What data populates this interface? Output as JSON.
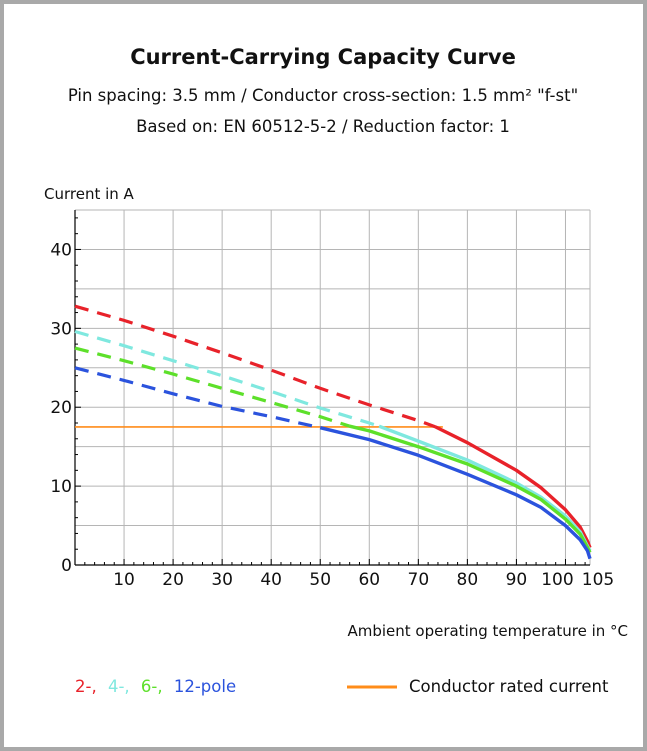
{
  "header": {
    "title": "Current-Carrying Capacity Curve",
    "subtitle1": "Pin spacing: 3.5 mm / Conductor cross-section: 1.5 mm² \"f-st\"",
    "subtitle2": "Based on: EN 60512-5-2 / Reduction factor: 1"
  },
  "legend": {
    "pole_2": "2-,",
    "pole_4": "4-,",
    "pole_6": "6-,",
    "pole_12": "12-pole",
    "rated": "Conductor rated current"
  },
  "chart_data": {
    "type": "line",
    "title": "Current-Carrying Capacity Curve",
    "xlabel": "Ambient operating temperature in °C",
    "ylabel": "Current in A",
    "xlim": [
      0,
      105
    ],
    "ylim": [
      0,
      45
    ],
    "xticks": [
      "10",
      "20",
      "30",
      "40",
      "50",
      "60",
      "70",
      "80",
      "90",
      "100",
      "105"
    ],
    "xtick_values": [
      10,
      20,
      30,
      40,
      50,
      60,
      70,
      80,
      90,
      100,
      105
    ],
    "yticks": [
      "0",
      "10",
      "20",
      "30",
      "40"
    ],
    "ytick_values": [
      0,
      10,
      20,
      30,
      40
    ],
    "grid": true,
    "rated_current": {
      "value": 17.5,
      "x_range": [
        0,
        75
      ],
      "color": "#ff8c1a"
    },
    "series": [
      {
        "name": "2-pole",
        "color": "#e8222a",
        "dash_until": 73.5,
        "x": [
          0,
          10,
          20,
          30,
          40,
          50,
          60,
          70,
          73.5,
          80,
          90,
          95,
          100,
          103,
          104.5,
          105
        ],
        "y": [
          32.8,
          31.0,
          29.0,
          26.9,
          24.7,
          22.4,
          20.3,
          18.3,
          17.5,
          15.5,
          12.0,
          9.8,
          7.0,
          4.8,
          3.0,
          2.2
        ]
      },
      {
        "name": "4-pole",
        "color": "#7fe8df",
        "dash_until": 62,
        "x": [
          0,
          10,
          20,
          30,
          40,
          50,
          60,
          62,
          70,
          80,
          90,
          95,
          100,
          103,
          104.5,
          105
        ],
        "y": [
          29.6,
          27.8,
          25.9,
          24.0,
          22.0,
          19.9,
          18.0,
          17.6,
          15.7,
          13.3,
          10.4,
          8.6,
          6.2,
          4.2,
          2.4,
          1.8
        ]
      },
      {
        "name": "6-pole",
        "color": "#5de02a",
        "dash_until": 56,
        "x": [
          0,
          10,
          20,
          30,
          40,
          50,
          56,
          60,
          70,
          80,
          90,
          95,
          100,
          103,
          104.5,
          105
        ],
        "y": [
          27.5,
          25.9,
          24.2,
          22.4,
          20.6,
          18.8,
          17.6,
          17.0,
          15.0,
          12.8,
          10.0,
          8.3,
          5.8,
          3.9,
          2.2,
          1.6
        ]
      },
      {
        "name": "12-pole",
        "color": "#2b53dd",
        "dash_until": 50,
        "x": [
          0,
          10,
          20,
          30,
          40,
          50,
          60,
          70,
          80,
          90,
          95,
          100,
          103,
          104.5,
          105
        ],
        "y": [
          25.0,
          23.4,
          21.7,
          20.1,
          18.8,
          17.4,
          15.9,
          13.9,
          11.5,
          8.9,
          7.3,
          5.0,
          3.2,
          1.8,
          0.8
        ]
      }
    ]
  }
}
